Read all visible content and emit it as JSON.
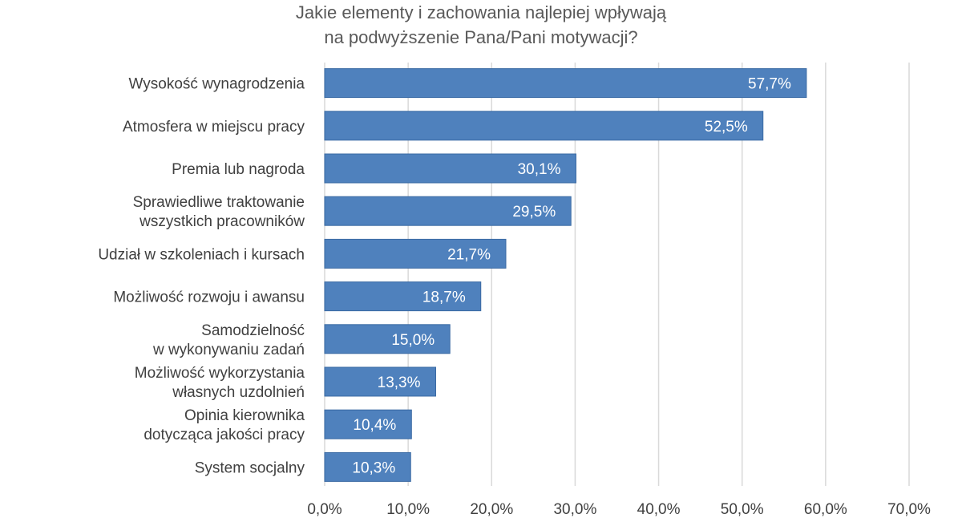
{
  "chart_data": {
    "type": "bar",
    "orientation": "horizontal",
    "title": [
      "Jakie elementy i zachowania najlepiej wpływają",
      "na podwyższenie Pana/Pani motywacji?"
    ],
    "categories": [
      [
        "Wysokość wynagrodzenia"
      ],
      [
        "Atmosfera w miejscu pracy"
      ],
      [
        "Premia lub nagroda"
      ],
      [
        "Sprawiedliwe traktowanie",
        "wszystkich pracowników"
      ],
      [
        "Udział w szkoleniach i kursach"
      ],
      [
        "Możliwość rozwoju i awansu"
      ],
      [
        "Samodzielność",
        "w wykonywaniu zadań"
      ],
      [
        "Możliwość wykorzystania",
        "własnych uzdolnień"
      ],
      [
        "Opinia kierownika",
        "dotycząca jakości pracy"
      ],
      [
        "System socjalny"
      ]
    ],
    "values": [
      57.7,
      52.5,
      30.1,
      29.5,
      21.7,
      18.7,
      15.0,
      13.3,
      10.4,
      10.3
    ],
    "data_labels": [
      "57,7%",
      "52,5%",
      "30,1%",
      "29,5%",
      "21,7%",
      "18,7%",
      "15,0%",
      "13,3%",
      "10,4%",
      "10,3%"
    ],
    "xlim": [
      0,
      70
    ],
    "xticks": [
      "0,0%",
      "10,0%",
      "20,0%",
      "30,0%",
      "40,0%",
      "50,0%",
      "60,0%",
      "70,0%"
    ],
    "grid": "vertical",
    "legend": "none",
    "bar_color": "#4f81bd"
  }
}
